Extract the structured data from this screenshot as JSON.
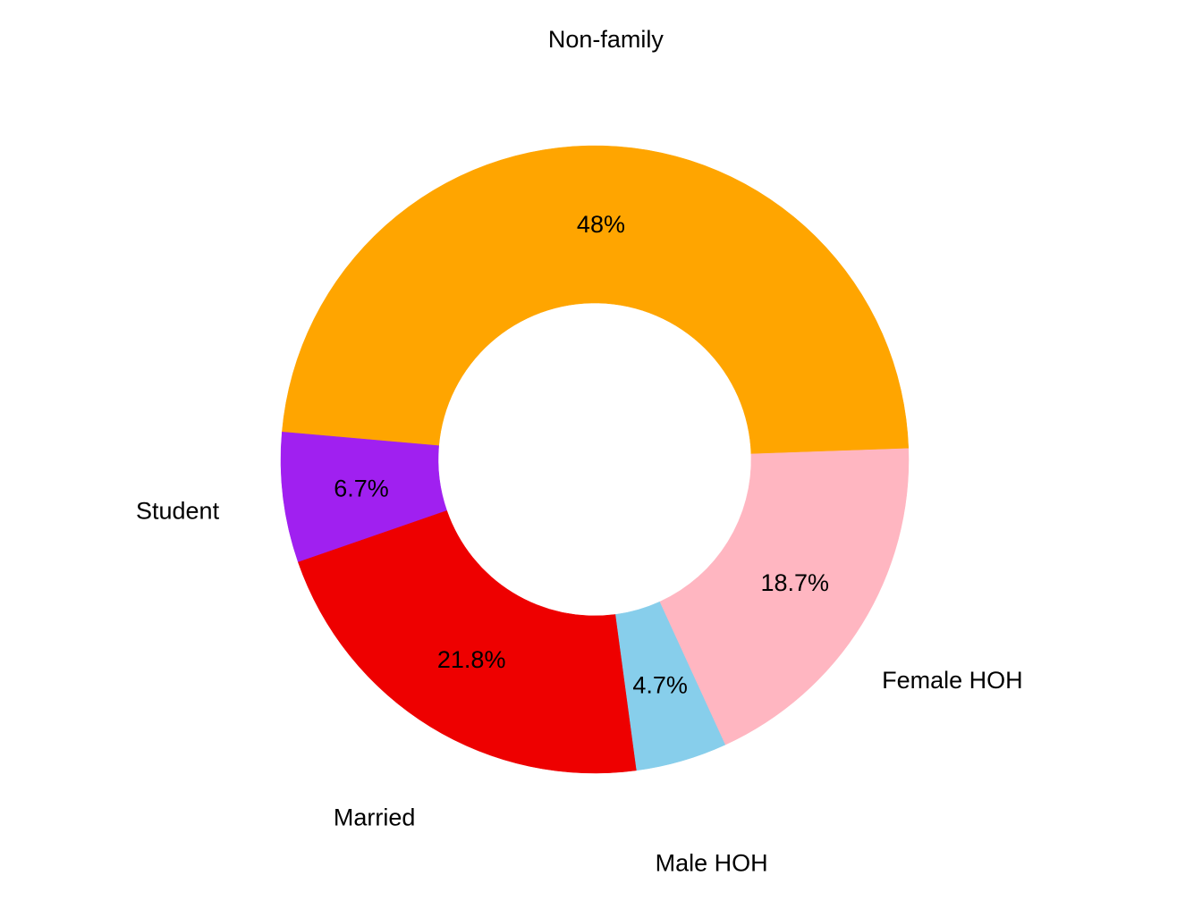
{
  "chart_data": {
    "type": "pie",
    "subtype": "donut",
    "title": "",
    "legend": "none",
    "slices": [
      {
        "label": "Non-family",
        "value": 48.0,
        "pct_label": "48%",
        "color": "#FFA500"
      },
      {
        "label": "Student",
        "value": 6.7,
        "pct_label": "6.7%",
        "color": "#A020F0"
      },
      {
        "label": "Married",
        "value": 21.8,
        "pct_label": "21.8%",
        "color": "#EE0000"
      },
      {
        "label": "Male HOH",
        "value": 4.7,
        "pct_label": "4.7%",
        "color": "#87CEEB"
      },
      {
        "label": "Female HOH",
        "value": 18.7,
        "pct_label": "18.7%",
        "color": "#FFB6C1"
      }
    ]
  }
}
